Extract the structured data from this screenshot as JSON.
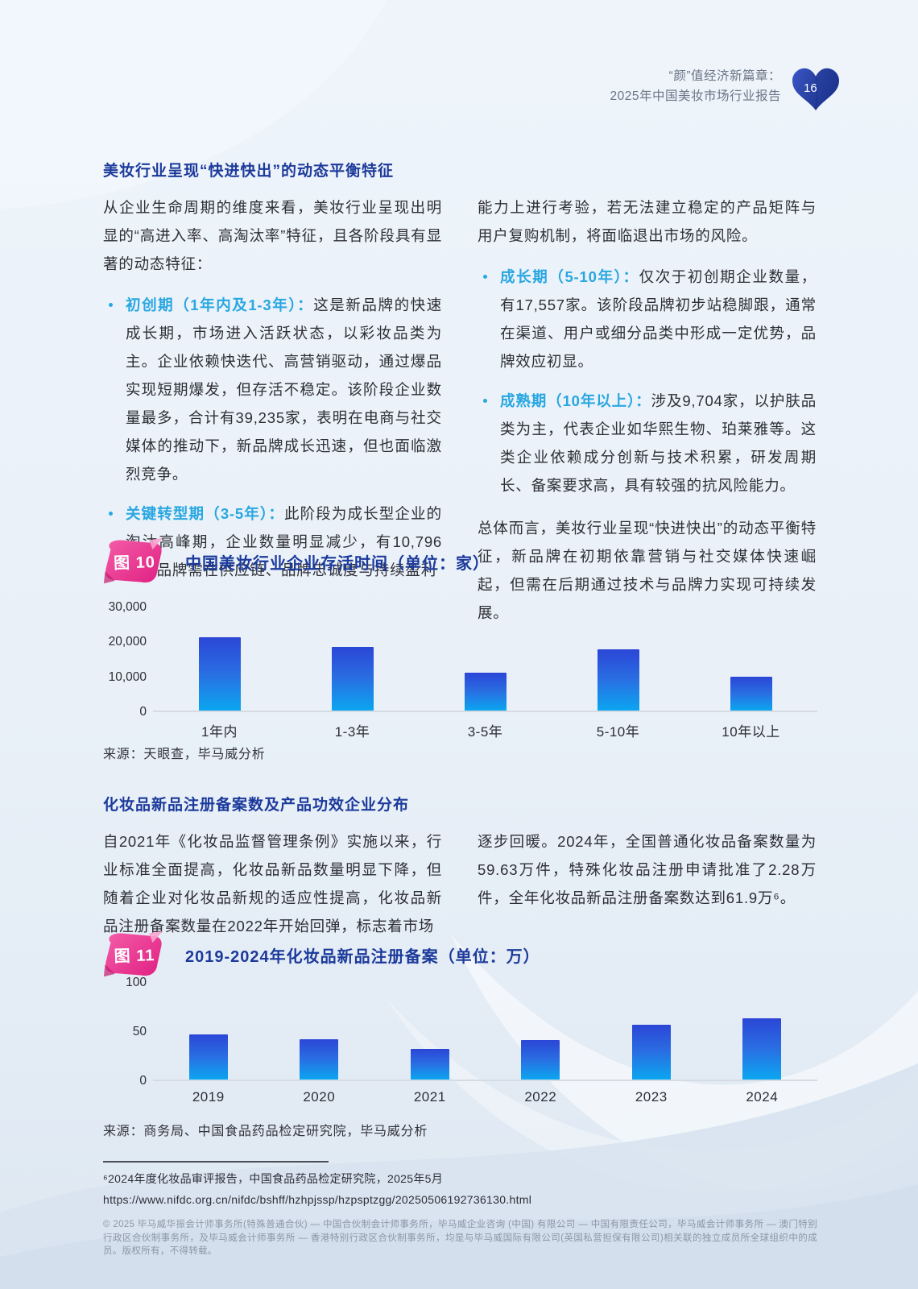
{
  "header": {
    "line1": "“颜”值经济新篇章：",
    "line2": "2025年中国美妆市场行业报告",
    "page": "16"
  },
  "section1": {
    "heading": "美妆行业呈现“快进快出”的动态平衡特征",
    "intro": "从企业生命周期的维度来看，美妆行业呈现出明显的“高进入率、高淘汰率”特征，且各阶段具有显著的动态特征：",
    "bullets": [
      {
        "term": "初创期（1年内及1-3年）：",
        "text": "这是新品牌的快速成长期，市场进入活跃状态，以彩妆品类为主。企业依赖快迭代、高营销驱动，通过爆品实现短期爆发，但存活不稳定。该阶段企业数量最多，合计有39,235家，表明在电商与社交媒体的推动下，新品牌成长迅速，但也面临激烈竞争。"
      },
      {
        "term": "关键转型期（3-5年）：",
        "text": "此阶段为成长型企业的淘汰高峰期，企业数量明显减少，有10,796家。品牌需在供应链、品牌忠诚度与持续盈利"
      }
    ],
    "continuation": "能力上进行考验，若无法建立稳定的产品矩阵与用户复购机制，将面临退出市场的风险。",
    "bullets_right": [
      {
        "term": "成长期（5-10年）：",
        "text": "仅次于初创期企业数量，有17,557家。该阶段品牌初步站稳脚跟，通常在渠道、用户或细分品类中形成一定优势，品牌效应初显。"
      },
      {
        "term": "成熟期（10年以上）：",
        "text": "涉及9,704家，以护肤品类为主，代表企业如华熙生物、珀莱雅等。这类企业依赖成分创新与技术积累，研发周期长、备案要求高，具有较强的抗风险能力。"
      }
    ],
    "summary": "总体而言，美妆行业呈现“快进快出”的动态平衡特征，新品牌在初期依靠营销与社交媒体快速崛起，但需在后期通过技术与品牌力实现可持续发展。"
  },
  "figure10": {
    "badge": "图 10",
    "title": "中国美妆行业企业存活时间（单位：家）",
    "source": "来源：天眼查，毕马威分析"
  },
  "section2": {
    "heading": "化妆品新品注册备案数及产品功效企业分布",
    "left_text": "自2021年《化妆品监督管理条例》实施以来，行业标准全面提高，化妆品新品数量明显下降，但随着企业对化妆品新规的适应性提高，化妆品新品注册备案数量在2022年开始回弹，标志着市场",
    "right_text": "逐步回暖。2024年，全国普通化妆品备案数量为59.63万件，特殊化妆品注册申请批准了2.28万件，全年化妆品新品注册备案数达到61.9万⁶。"
  },
  "figure11": {
    "badge": "图 11",
    "title": "2019-2024年化妆品新品注册备案（单位：万）",
    "source": "来源：商务局、中国食品药品检定研究院，毕马威分析"
  },
  "chart_data": [
    {
      "type": "bar",
      "title": "中国美妆行业企业存活时间（单位：家）",
      "categories": [
        "1年内",
        "1-3年",
        "3-5年",
        "5-10年",
        "10年以上"
      ],
      "values": [
        20900,
        18300,
        10796,
        17557,
        9704
      ],
      "xlabel": "",
      "ylabel": "家",
      "ylim": [
        0,
        30000
      ],
      "yticks": [
        0,
        10000,
        20000,
        30000
      ],
      "ytick_labels": [
        "0",
        "10,000",
        "20,000",
        "30,000"
      ],
      "grid": false,
      "legend": false
    },
    {
      "type": "bar",
      "title": "2019-2024年化妆品新品注册备案（单位：万）",
      "categories": [
        "2019",
        "2020",
        "2021",
        "2022",
        "2023",
        "2024"
      ],
      "values": [
        46,
        41,
        31,
        40,
        56,
        62
      ],
      "xlabel": "",
      "ylabel": "万",
      "ylim": [
        0,
        100
      ],
      "yticks": [
        0,
        50,
        100
      ],
      "ytick_labels": [
        "0",
        "50",
        "100"
      ],
      "grid": false,
      "legend": false
    }
  ],
  "footnote": {
    "line1": "⁶2024年度化妆品审评报告，中国食品药品检定研究院，2025年5月",
    "line2": "https://www.nifdc.org.cn/nifdc/bshff/hzhpjssp/hzpsptzgg/20250506192736130.html"
  },
  "footer": {
    "copyright": "© 2025 毕马威华振会计师事务所(特殊普通合伙) — 中国合伙制会计师事务所，毕马威企业咨询 (中国) 有限公司 — 中国有限责任公司，毕马威会计师事务所 — 澳门特别行政区合伙制事务所，及毕马威会计师事务所 — 香港特别行政区合伙制事务所，均是与毕马威国际有限公司(英国私营担保有限公司)相关联的独立成员所全球组织中的成员。版权所有，不得转载。"
  },
  "colors": {
    "heading_blue": "#1c3a9b",
    "accent_cyan": "#29a7e1",
    "badge_pink": "#e8308f",
    "heart_blue": "#27409f",
    "bar_top": "#2b46d6",
    "bar_bottom": "#0ba6f0",
    "body_text": "#2e2e36",
    "footer_gray": "#8d96a6"
  }
}
